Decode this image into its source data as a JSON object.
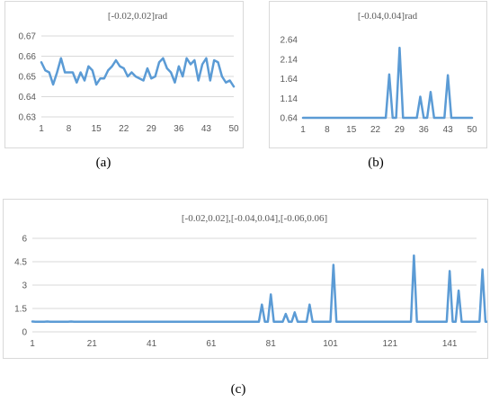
{
  "captions": {
    "a": "(a)",
    "b": "(b)",
    "c": "(c)"
  },
  "colors": {
    "line": "#5b9bd5",
    "grid": "#d9d9d9",
    "text": "#595959"
  },
  "chart_data": [
    {
      "id": "a",
      "type": "line",
      "title": "[-0.02,0.02]rad",
      "xlabel": "",
      "ylabel": "",
      "xlim": [
        1,
        50
      ],
      "ylim": [
        0.63,
        0.67
      ],
      "yticks": [
        "0.63",
        "0.64",
        "0.65",
        "0.66",
        "0.67"
      ],
      "xticks": [
        "1",
        "8",
        "15",
        "22",
        "29",
        "36",
        "43",
        "50"
      ],
      "grid": true,
      "series": [
        {
          "values": [
            0.657,
            0.653,
            0.652,
            0.646,
            0.652,
            0.659,
            0.652,
            0.652,
            0.652,
            0.647,
            0.652,
            0.648,
            0.655,
            0.653,
            0.646,
            0.649,
            0.649,
            0.653,
            0.655,
            0.658,
            0.655,
            0.654,
            0.65,
            0.652,
            0.65,
            0.649,
            0.648,
            0.654,
            0.649,
            0.65,
            0.657,
            0.659,
            0.654,
            0.652,
            0.647,
            0.655,
            0.65,
            0.659,
            0.656,
            0.658,
            0.648,
            0.656,
            0.659,
            0.648,
            0.658,
            0.657,
            0.65,
            0.647,
            0.648,
            0.645
          ]
        }
      ]
    },
    {
      "id": "b",
      "type": "line",
      "title": "[-0.04,0.04]rad",
      "xlabel": "",
      "ylabel": "",
      "xlim": [
        1,
        50
      ],
      "ylim": [
        0.64,
        2.64
      ],
      "yticks": [
        "0.64",
        "1.14",
        "1.64",
        "2.14",
        "2.64"
      ],
      "xticks": [
        "1",
        "8",
        "15",
        "22",
        "29",
        "36",
        "43",
        "50"
      ],
      "grid": false,
      "series": [
        {
          "values": [
            0.64,
            0.64,
            0.64,
            0.64,
            0.64,
            0.64,
            0.64,
            0.64,
            0.64,
            0.64,
            0.64,
            0.64,
            0.64,
            0.64,
            0.64,
            0.64,
            0.64,
            0.64,
            0.64,
            0.64,
            0.64,
            0.64,
            0.64,
            0.64,
            0.64,
            1.75,
            0.64,
            0.64,
            2.43,
            0.64,
            0.64,
            0.64,
            0.64,
            0.64,
            1.18,
            0.64,
            0.64,
            1.3,
            0.64,
            0.64,
            0.64,
            0.64,
            1.73,
            0.64,
            0.64,
            0.64,
            0.64,
            0.64,
            0.64,
            0.64
          ]
        }
      ]
    },
    {
      "id": "c",
      "type": "line",
      "title": "[-0.02,0.02],[-0.04,0.04],[-0.06,0.06]",
      "xlabel": "",
      "ylabel": "",
      "xlim": [
        1,
        150
      ],
      "ylim": [
        0,
        6
      ],
      "yticks": [
        "0",
        "1.5",
        "3",
        "4.5",
        "6"
      ],
      "xticks": [
        "1",
        "21",
        "41",
        "61",
        "81",
        "101",
        "121",
        "141"
      ],
      "grid": true,
      "series": [
        {
          "values": [
            0.66,
            0.65,
            0.65,
            0.65,
            0.65,
            0.66,
            0.65,
            0.65,
            0.65,
            0.65,
            0.65,
            0.65,
            0.65,
            0.66,
            0.65,
            0.65,
            0.65,
            0.65,
            0.65,
            0.65,
            0.65,
            0.65,
            0.65,
            0.65,
            0.65,
            0.65,
            0.65,
            0.65,
            0.65,
            0.65,
            0.65,
            0.65,
            0.65,
            0.65,
            0.65,
            0.65,
            0.65,
            0.65,
            0.65,
            0.65,
            0.65,
            0.65,
            0.65,
            0.65,
            0.65,
            0.65,
            0.65,
            0.65,
            0.65,
            0.65,
            0.65,
            0.65,
            0.65,
            0.65,
            0.65,
            0.65,
            0.65,
            0.65,
            0.65,
            0.65,
            0.65,
            0.65,
            0.65,
            0.65,
            0.65,
            0.65,
            0.65,
            0.65,
            0.65,
            0.65,
            0.65,
            0.65,
            0.65,
            0.65,
            0.65,
            0.65,
            0.65,
            1.75,
            0.65,
            0.65,
            2.4,
            0.65,
            0.65,
            0.65,
            0.65,
            1.15,
            0.65,
            0.65,
            1.25,
            0.65,
            0.65,
            0.65,
            0.65,
            1.75,
            0.65,
            0.65,
            0.65,
            0.65,
            0.65,
            0.65,
            0.65,
            4.3,
            0.65,
            0.65,
            0.65,
            0.65,
            0.65,
            0.65,
            0.65,
            0.65,
            0.65,
            0.65,
            0.65,
            0.65,
            0.65,
            0.65,
            0.65,
            0.65,
            0.65,
            0.65,
            0.65,
            0.65,
            0.65,
            0.65,
            0.65,
            0.65,
            0.65,
            0.65,
            4.9,
            0.65,
            0.65,
            0.65,
            0.65,
            0.65,
            0.65,
            0.65,
            0.65,
            0.65,
            0.65,
            0.65,
            3.9,
            0.65,
            0.65,
            2.65,
            0.65,
            0.65,
            0.65,
            0.65,
            0.65,
            0.65,
            0.65,
            4.0,
            0.65,
            0.65
          ]
        }
      ]
    }
  ]
}
